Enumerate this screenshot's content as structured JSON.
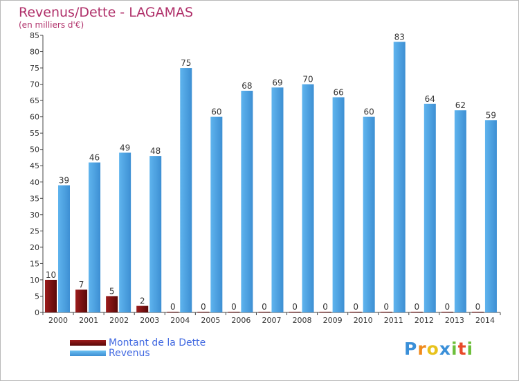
{
  "chart_data": {
    "type": "bar",
    "title": "Revenus/Dette - LAGAMAS",
    "subtitle": "(en milliers d'€)",
    "categories": [
      "2000",
      "2001",
      "2002",
      "2003",
      "2004",
      "2005",
      "2006",
      "2007",
      "2008",
      "2009",
      "2010",
      "2011",
      "2012",
      "2013",
      "2014"
    ],
    "series": [
      {
        "name": "Montant de la Dette",
        "color": "#7a1010",
        "values": [
          10,
          7,
          5,
          2,
          0,
          0,
          0,
          0,
          0,
          0,
          0,
          0,
          0,
          0,
          0
        ]
      },
      {
        "name": "Revenus",
        "color": "#4fa6e6",
        "values": [
          39,
          46,
          49,
          48,
          75,
          60,
          68,
          69,
          70,
          66,
          60,
          83,
          64,
          62,
          59
        ]
      }
    ],
    "ylim": [
      0,
      85
    ],
    "yticks": [
      0,
      5,
      10,
      15,
      20,
      25,
      30,
      35,
      40,
      45,
      50,
      55,
      60,
      65,
      70,
      75,
      80,
      85
    ],
    "grid": false,
    "legend_position": "bottom-left"
  },
  "logo": {
    "text": "Proxiti",
    "letters": [
      {
        "char": "P",
        "color": "#3a8fd8"
      },
      {
        "char": "r",
        "color": "#f08a1c"
      },
      {
        "char": "o",
        "color": "#e8c21c"
      },
      {
        "char": "x",
        "color": "#3a8fd8"
      },
      {
        "char": "i",
        "color": "#6cbf3a"
      },
      {
        "char": "t",
        "color": "#e84a2a"
      },
      {
        "char": "i",
        "color": "#6cbf3a"
      }
    ]
  }
}
